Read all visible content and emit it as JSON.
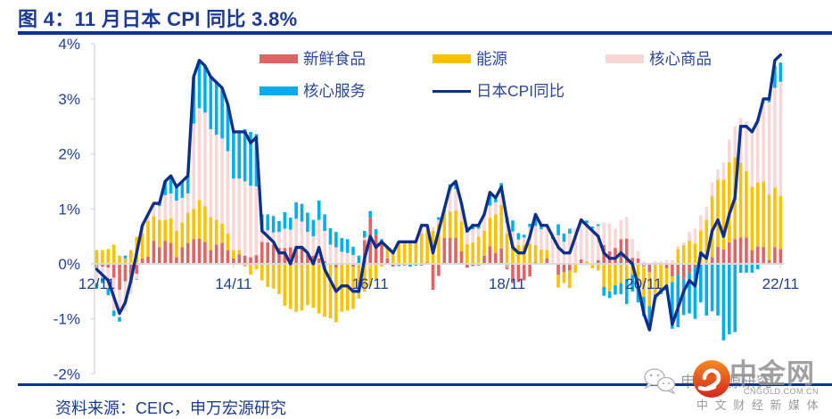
{
  "title": "图 4：11 月日本 CPI 同比 3.8%",
  "source": "资料来源：CEIC，申万宏源研究",
  "watermark": {
    "wechat_text": "申万宏源研究",
    "brand": "中金网",
    "brand_url_text": "CNGOLD.COM.CN",
    "brand_tagline": "中 文 财 经 新 媒 体"
  },
  "colors": {
    "title": "#1B3A93",
    "rule": "#0B3591",
    "axis": "#D9D9D9",
    "tick_text": "#1F3E96",
    "logo_top": "#F58A22",
    "logo_bottom": "#D6261D"
  },
  "chart_data": {
    "type": "bar",
    "stacked": true,
    "overlay": "line",
    "title": "11 月日本 CPI 同比 3.8%",
    "xlabel": "",
    "ylabel": "",
    "ylim": [
      -2,
      4
    ],
    "grid": false,
    "legend_position": "top",
    "yticks": [
      {
        "value": 4,
        "label": "4%"
      },
      {
        "value": 3,
        "label": "3%"
      },
      {
        "value": 2,
        "label": "2%"
      },
      {
        "value": 1,
        "label": "1%"
      },
      {
        "value": 0,
        "label": "0%"
      },
      {
        "value": -1,
        "label": "-1%"
      },
      {
        "value": -2,
        "label": "-2%"
      }
    ],
    "xticks": [
      "12/11",
      "14/11",
      "16/11",
      "18/11",
      "20/11",
      "22/11"
    ],
    "categories": [
      "12/11",
      "12/12",
      "13/01",
      "13/02",
      "13/03",
      "13/04",
      "13/05",
      "13/06",
      "13/07",
      "13/08",
      "13/09",
      "13/10",
      "13/11",
      "13/12",
      "14/01",
      "14/02",
      "14/03",
      "14/04",
      "14/05",
      "14/06",
      "14/07",
      "14/08",
      "14/09",
      "14/10",
      "14/11",
      "14/12",
      "15/01",
      "15/02",
      "15/03",
      "15/04",
      "15/05",
      "15/06",
      "15/07",
      "15/08",
      "15/09",
      "15/10",
      "15/11",
      "15/12",
      "16/01",
      "16/02",
      "16/03",
      "16/04",
      "16/05",
      "16/06",
      "16/07",
      "16/08",
      "16/09",
      "16/10",
      "16/11",
      "16/12",
      "17/01",
      "17/02",
      "17/03",
      "17/04",
      "17/05",
      "17/06",
      "17/07",
      "17/08",
      "17/09",
      "17/10",
      "17/11",
      "17/12",
      "18/01",
      "18/02",
      "18/03",
      "18/04",
      "18/05",
      "18/06",
      "18/07",
      "18/08",
      "18/09",
      "18/10",
      "18/11",
      "18/12",
      "19/01",
      "19/02",
      "19/03",
      "19/04",
      "19/05",
      "19/06",
      "19/07",
      "19/08",
      "19/09",
      "19/10",
      "19/11",
      "19/12",
      "20/01",
      "20/02",
      "20/03",
      "20/04",
      "20/05",
      "20/06",
      "20/07",
      "20/08",
      "20/09",
      "20/10",
      "20/11",
      "20/12",
      "21/01",
      "21/02",
      "21/03",
      "21/04",
      "21/05",
      "21/06",
      "21/07",
      "21/08",
      "21/09",
      "21/10",
      "21/11",
      "21/12",
      "22/01",
      "22/02",
      "22/03",
      "22/04",
      "22/05",
      "22/06",
      "22/07",
      "22/08",
      "22/09",
      "22/10",
      "22/11"
    ],
    "series": [
      {
        "name": "新鲜食品",
        "kind": "bar",
        "color": "#E46262",
        "values": [
          -0.08,
          -0.05,
          -0.07,
          -0.25,
          -0.47,
          -0.32,
          -0.35,
          -0.18,
          0.1,
          0.13,
          0.42,
          0.3,
          0.42,
          0.38,
          0.12,
          0.3,
          0.38,
          0.45,
          0.46,
          0.4,
          0.25,
          0.35,
          0.38,
          0.25,
          0.1,
          0.17,
          0.15,
          0.12,
          0.16,
          0.4,
          0.39,
          0.35,
          0.29,
          0.29,
          0.3,
          0.31,
          0.29,
          0.18,
          0.15,
          0.1,
          0.05,
          0.0,
          -0.07,
          0.02,
          0.02,
          -0.05,
          -0.02,
          0.43,
          0.84,
          0.53,
          0.42,
          0.1,
          -0.05,
          -0.02,
          -0.03,
          0.02,
          0.0,
          -0.03,
          0.03,
          -0.47,
          -0.22,
          0.47,
          0.47,
          0.47,
          0.23,
          -0.07,
          -0.04,
          -0.03,
          0.15,
          0.32,
          0.2,
          0.28,
          -0.1,
          -0.35,
          -0.33,
          -0.3,
          -0.23,
          0.03,
          0.0,
          0.1,
          0.0,
          -0.2,
          -0.15,
          -0.12,
          0.0,
          0.08,
          -0.02,
          0.0,
          0.07,
          0.34,
          0.23,
          0.29,
          0.45,
          0.46,
          0.11,
          0.1,
          -0.05,
          -0.15,
          0.0,
          0.0,
          -0.08,
          -0.23,
          -0.2,
          -0.28,
          -0.17,
          -0.05,
          0.0,
          0.02,
          0.12,
          0.31,
          0.26,
          0.39,
          0.45,
          0.48,
          0.48,
          0.25,
          0.32,
          0.31,
          0.07,
          0.3,
          0.27
        ]
      },
      {
        "name": "能源",
        "kind": "bar",
        "color": "#FFC000",
        "values": [
          0.25,
          0.25,
          0.27,
          0.35,
          0.15,
          0.1,
          0.25,
          0.49,
          0.45,
          0.65,
          0.45,
          0.5,
          0.38,
          0.45,
          0.48,
          0.45,
          0.55,
          0.55,
          0.7,
          0.65,
          0.6,
          0.45,
          0.35,
          0.3,
          0.15,
          0.08,
          -0.05,
          -0.2,
          -0.1,
          -0.3,
          -0.42,
          -0.45,
          -0.55,
          -0.76,
          -0.82,
          -0.87,
          -0.85,
          -0.75,
          -0.8,
          -0.9,
          -0.96,
          -0.99,
          -0.99,
          -0.87,
          -0.85,
          -0.77,
          -0.61,
          -0.5,
          -0.4,
          -0.28,
          -0.05,
          0.18,
          0.2,
          0.37,
          0.37,
          0.4,
          0.39,
          0.55,
          0.58,
          0.6,
          0.72,
          0.48,
          0.48,
          0.5,
          0.54,
          0.36,
          0.39,
          0.5,
          0.45,
          0.52,
          0.7,
          0.79,
          0.55,
          0.37,
          0.34,
          0.34,
          0.37,
          0.31,
          0.26,
          0.15,
          0.0,
          -0.23,
          -0.2,
          -0.32,
          -0.16,
          0.0,
          0.04,
          -0.08,
          -0.12,
          -0.42,
          -0.5,
          -0.39,
          -0.35,
          -0.28,
          -0.2,
          -0.45,
          -0.55,
          -0.62,
          -0.55,
          -0.45,
          -0.3,
          -0.1,
          0.27,
          0.34,
          0.42,
          0.37,
          0.61,
          0.78,
          1.11,
          1.22,
          1.27,
          1.46,
          1.49,
          1.36,
          1.21,
          1.15,
          1.16,
          1.19,
          1.19,
          1.09,
          0.96
        ]
      },
      {
        "name": "核心商品",
        "kind": "bar",
        "color": "#F9D7D7",
        "values": [
          -0.27,
          -0.2,
          -0.38,
          -0.6,
          -0.5,
          -0.53,
          -0.2,
          -0.1,
          0.15,
          0.12,
          0.23,
          0.25,
          0.45,
          0.45,
          0.55,
          0.45,
          0.35,
          1.55,
          1.67,
          1.7,
          1.6,
          1.55,
          1.55,
          1.5,
          1.3,
          1.3,
          1.35,
          1.3,
          1.25,
          0.2,
          0.22,
          0.22,
          0.29,
          0.35,
          0.32,
          0.51,
          0.48,
          0.4,
          0.35,
          0.7,
          0.55,
          0.35,
          0.3,
          0.2,
          0.18,
          0.16,
          0.0,
          0.05,
          0.0,
          0.0,
          0.0,
          0.0,
          0.03,
          0.05,
          0.05,
          0.02,
          0.06,
          0.2,
          0.11,
          0.07,
          0.08,
          0.1,
          0.39,
          0.39,
          0.35,
          0.21,
          0.24,
          0.14,
          0.3,
          0.22,
          0.22,
          0.32,
          0.2,
          0.22,
          0.1,
          0.14,
          0.3,
          0.35,
          0.37,
          0.43,
          0.45,
          0.52,
          0.4,
          0.55,
          0.66,
          0.75,
          0.7,
          0.64,
          0.62,
          0.41,
          0.51,
          0.35,
          0.35,
          0.39,
          0.34,
          0.13,
          0.05,
          0.02,
          0.05,
          0.05,
          0.07,
          0.07,
          0.05,
          0.05,
          0.17,
          0.27,
          0.27,
          0.23,
          0.25,
          0.19,
          0.32,
          0.41,
          0.56,
          0.81,
          0.9,
          1.02,
          1.16,
          1.52,
          1.68,
          1.81,
          2.08
        ]
      },
      {
        "name": "核心服务",
        "kind": "bar",
        "color": "#00AEEF",
        "values": [
          -0.1,
          -0.1,
          -0.12,
          -0.1,
          -0.08,
          0.05,
          0.0,
          -0.01,
          0.0,
          0.0,
          0.0,
          0.05,
          0.25,
          0.32,
          0.25,
          0.3,
          0.32,
          0.85,
          0.87,
          0.85,
          0.95,
          0.95,
          0.92,
          0.85,
          0.85,
          0.85,
          0.95,
          0.98,
          0.95,
          0.3,
          0.29,
          0.3,
          0.2,
          0.3,
          0.22,
          0.3,
          0.32,
          0.35,
          0.3,
          0.35,
          0.3,
          0.3,
          0.28,
          0.25,
          0.25,
          0.15,
          0.15,
          0.12,
          0.12,
          0.1,
          0.03,
          0.02,
          0.02,
          -0.02,
          0.01,
          -0.05,
          -0.03,
          0.0,
          0.0,
          0.0,
          0.05,
          0.0,
          0.11,
          0.1,
          0.0,
          0.08,
          0.1,
          0.08,
          0.0,
          0.2,
          0.06,
          0.08,
          0.1,
          0.2,
          0.12,
          0.05,
          0.06,
          0.21,
          0.07,
          0.02,
          0.05,
          0.2,
          0.15,
          0.09,
          0.0,
          -0.02,
          0.05,
          0.04,
          0.03,
          -0.16,
          -0.12,
          -0.17,
          -0.2,
          -0.45,
          -0.3,
          -0.25,
          -0.35,
          -0.45,
          -0.1,
          -0.1,
          -0.1,
          -0.85,
          -0.95,
          -0.65,
          -0.73,
          -0.95,
          -0.7,
          -0.94,
          -0.86,
          -0.94,
          -1.39,
          -1.28,
          -1.24,
          -0.16,
          -0.16,
          -0.16,
          -0.1,
          0.0,
          0.09,
          0.4,
          0.35
        ]
      },
      {
        "name": "日本CPI同比",
        "kind": "line",
        "color": "#0B2F8C",
        "values": [
          -0.1,
          -0.2,
          -0.3,
          -0.6,
          -0.9,
          -0.7,
          -0.3,
          0.2,
          0.7,
          0.9,
          1.1,
          1.1,
          1.5,
          1.6,
          1.4,
          1.5,
          1.6,
          3.4,
          3.7,
          3.6,
          3.4,
          3.3,
          3.2,
          2.9,
          2.4,
          2.4,
          2.4,
          2.2,
          2.3,
          0.6,
          0.5,
          0.4,
          0.2,
          0.2,
          0.0,
          0.3,
          0.3,
          0.2,
          0.0,
          0.3,
          -0.1,
          -0.3,
          -0.5,
          -0.4,
          -0.4,
          -0.5,
          -0.5,
          0.1,
          0.5,
          0.3,
          0.4,
          0.3,
          0.2,
          0.4,
          0.4,
          0.4,
          0.4,
          0.7,
          0.7,
          0.2,
          0.6,
          1.0,
          1.4,
          1.5,
          1.1,
          0.6,
          0.7,
          0.7,
          0.9,
          1.3,
          1.2,
          1.4,
          0.8,
          0.3,
          0.2,
          0.2,
          0.5,
          0.9,
          0.7,
          0.7,
          0.5,
          0.3,
          0.2,
          0.2,
          0.5,
          0.8,
          0.7,
          0.6,
          0.5,
          0.2,
          0.1,
          0.1,
          0.2,
          0.1,
          0.0,
          -0.4,
          -0.9,
          -1.2,
          -0.6,
          -0.5,
          -0.4,
          -1.1,
          -0.8,
          -0.5,
          -0.3,
          -0.4,
          0.2,
          0.1,
          0.6,
          0.8,
          0.5,
          0.9,
          1.2,
          2.5,
          2.5,
          2.4,
          2.6,
          3.0,
          3.0,
          3.7,
          3.8
        ]
      }
    ]
  }
}
